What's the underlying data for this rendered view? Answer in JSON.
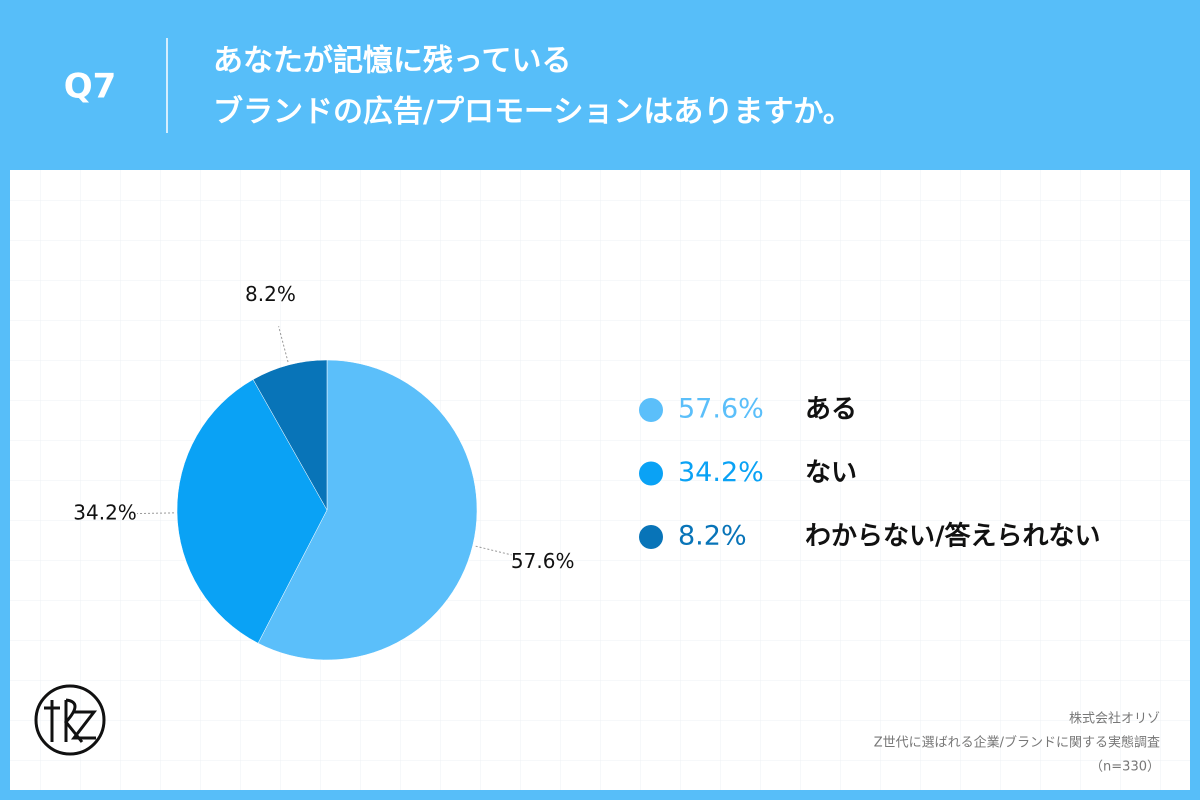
{
  "chart_data": {
    "type": "pie",
    "question": "Q7",
    "title": [
      "あなたが記憶に残っている",
      "ブランドの広告/プロモーションはありますか。"
    ],
    "categories": [
      "ある",
      "ない",
      "わからない/答えられない"
    ],
    "values": [
      57.6,
      34.2,
      8.2
    ],
    "value_labels": [
      "57.6%",
      "34.2%",
      "8.2%"
    ],
    "colors": [
      "#5bbffa",
      "#0aa2f5",
      "#0874b8"
    ],
    "source": [
      "株式会社オリゾ",
      "Z世代に選ばれる企業/ブランドに関する実態調査",
      "（n=330）"
    ]
  }
}
